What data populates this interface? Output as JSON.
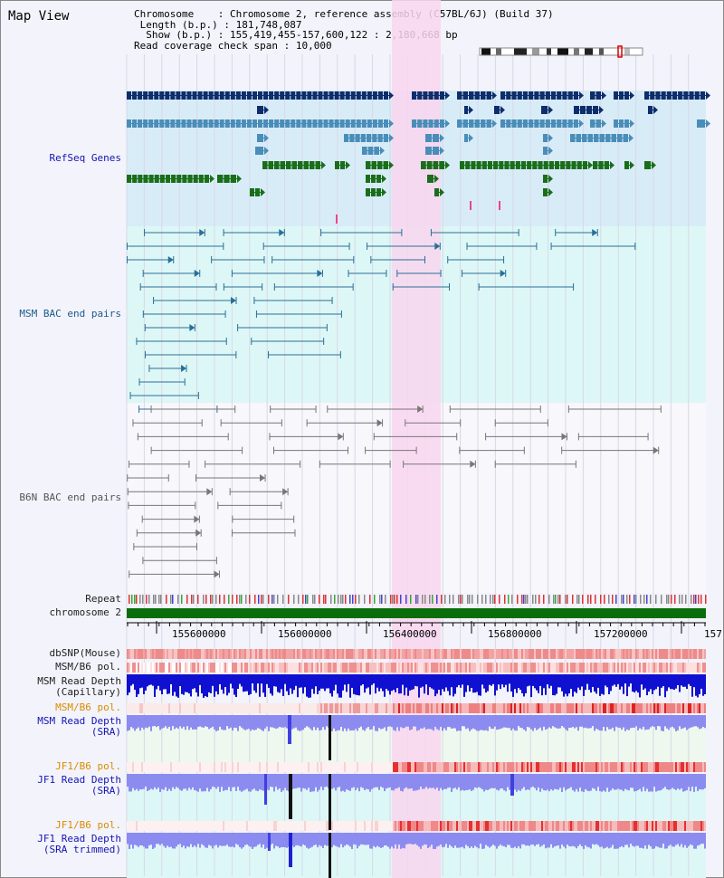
{
  "title": "Map View",
  "info": {
    "chromosome_label": "Chromosome",
    "chromosome_value": "Chromosome 2, reference assembly (C57BL/6J) (Build 37)",
    "length_label": "Length (b.p.)",
    "length_value": "181,748,087",
    "show_label": "Show (b.p.)",
    "show_value": "155,419,455-157,600,122 : 2,180,668 bp",
    "coverage_label": "Read coverage check span",
    "coverage_value": "10,000"
  },
  "tracks": {
    "refseq": "RefSeq Genes",
    "msm_bac": "MSM BAC end pairs",
    "b6n_bac": "B6N BAC end pairs",
    "repeat": "Repeat",
    "chromosome": "chromosome 2",
    "dbsnp": "dbSNP(Mouse)",
    "msm_b6_pol_1": "MSM/B6 pol.",
    "msm_read_depth_cap_1": "MSM Read Depth",
    "msm_read_depth_cap_2": "(Capillary)",
    "msm_b6_pol_2": "MSM/B6 pol.",
    "msm_read_depth_sra_1": "MSM Read Depth",
    "msm_read_depth_sra_2": "(SRA)",
    "jf1_b6_pol_1": "JF1/B6 pol.",
    "jf1_read_depth_1": "JF1 Read Depth",
    "jf1_read_depth_2": "(SRA)",
    "jf1_b6_pol_2": "JF1/B6 pol.",
    "jf1_read_depth_trim_1": "JF1 Read Depth",
    "jf1_read_depth_trim_2": "(SRA trimmed)"
  },
  "ruler_ticks": [
    "155600000",
    "156000000",
    "156400000",
    "156800000",
    "157200000",
    "157"
  ],
  "colors": {
    "refseq_bg": "#d8ecf8",
    "msm_bg": "#ddf7f7",
    "highlight": "#f9d6ef",
    "gene_dark": "#0d2d6b",
    "gene_mid": "#4a8db8",
    "gene_green": "#1a6e1a",
    "bac_msm": "#2a6f96",
    "bac_b6n": "#777777",
    "chrom": "#0a6e0a",
    "depth_blue": "#1010d0",
    "depth_light": "#8c8cf0"
  }
}
